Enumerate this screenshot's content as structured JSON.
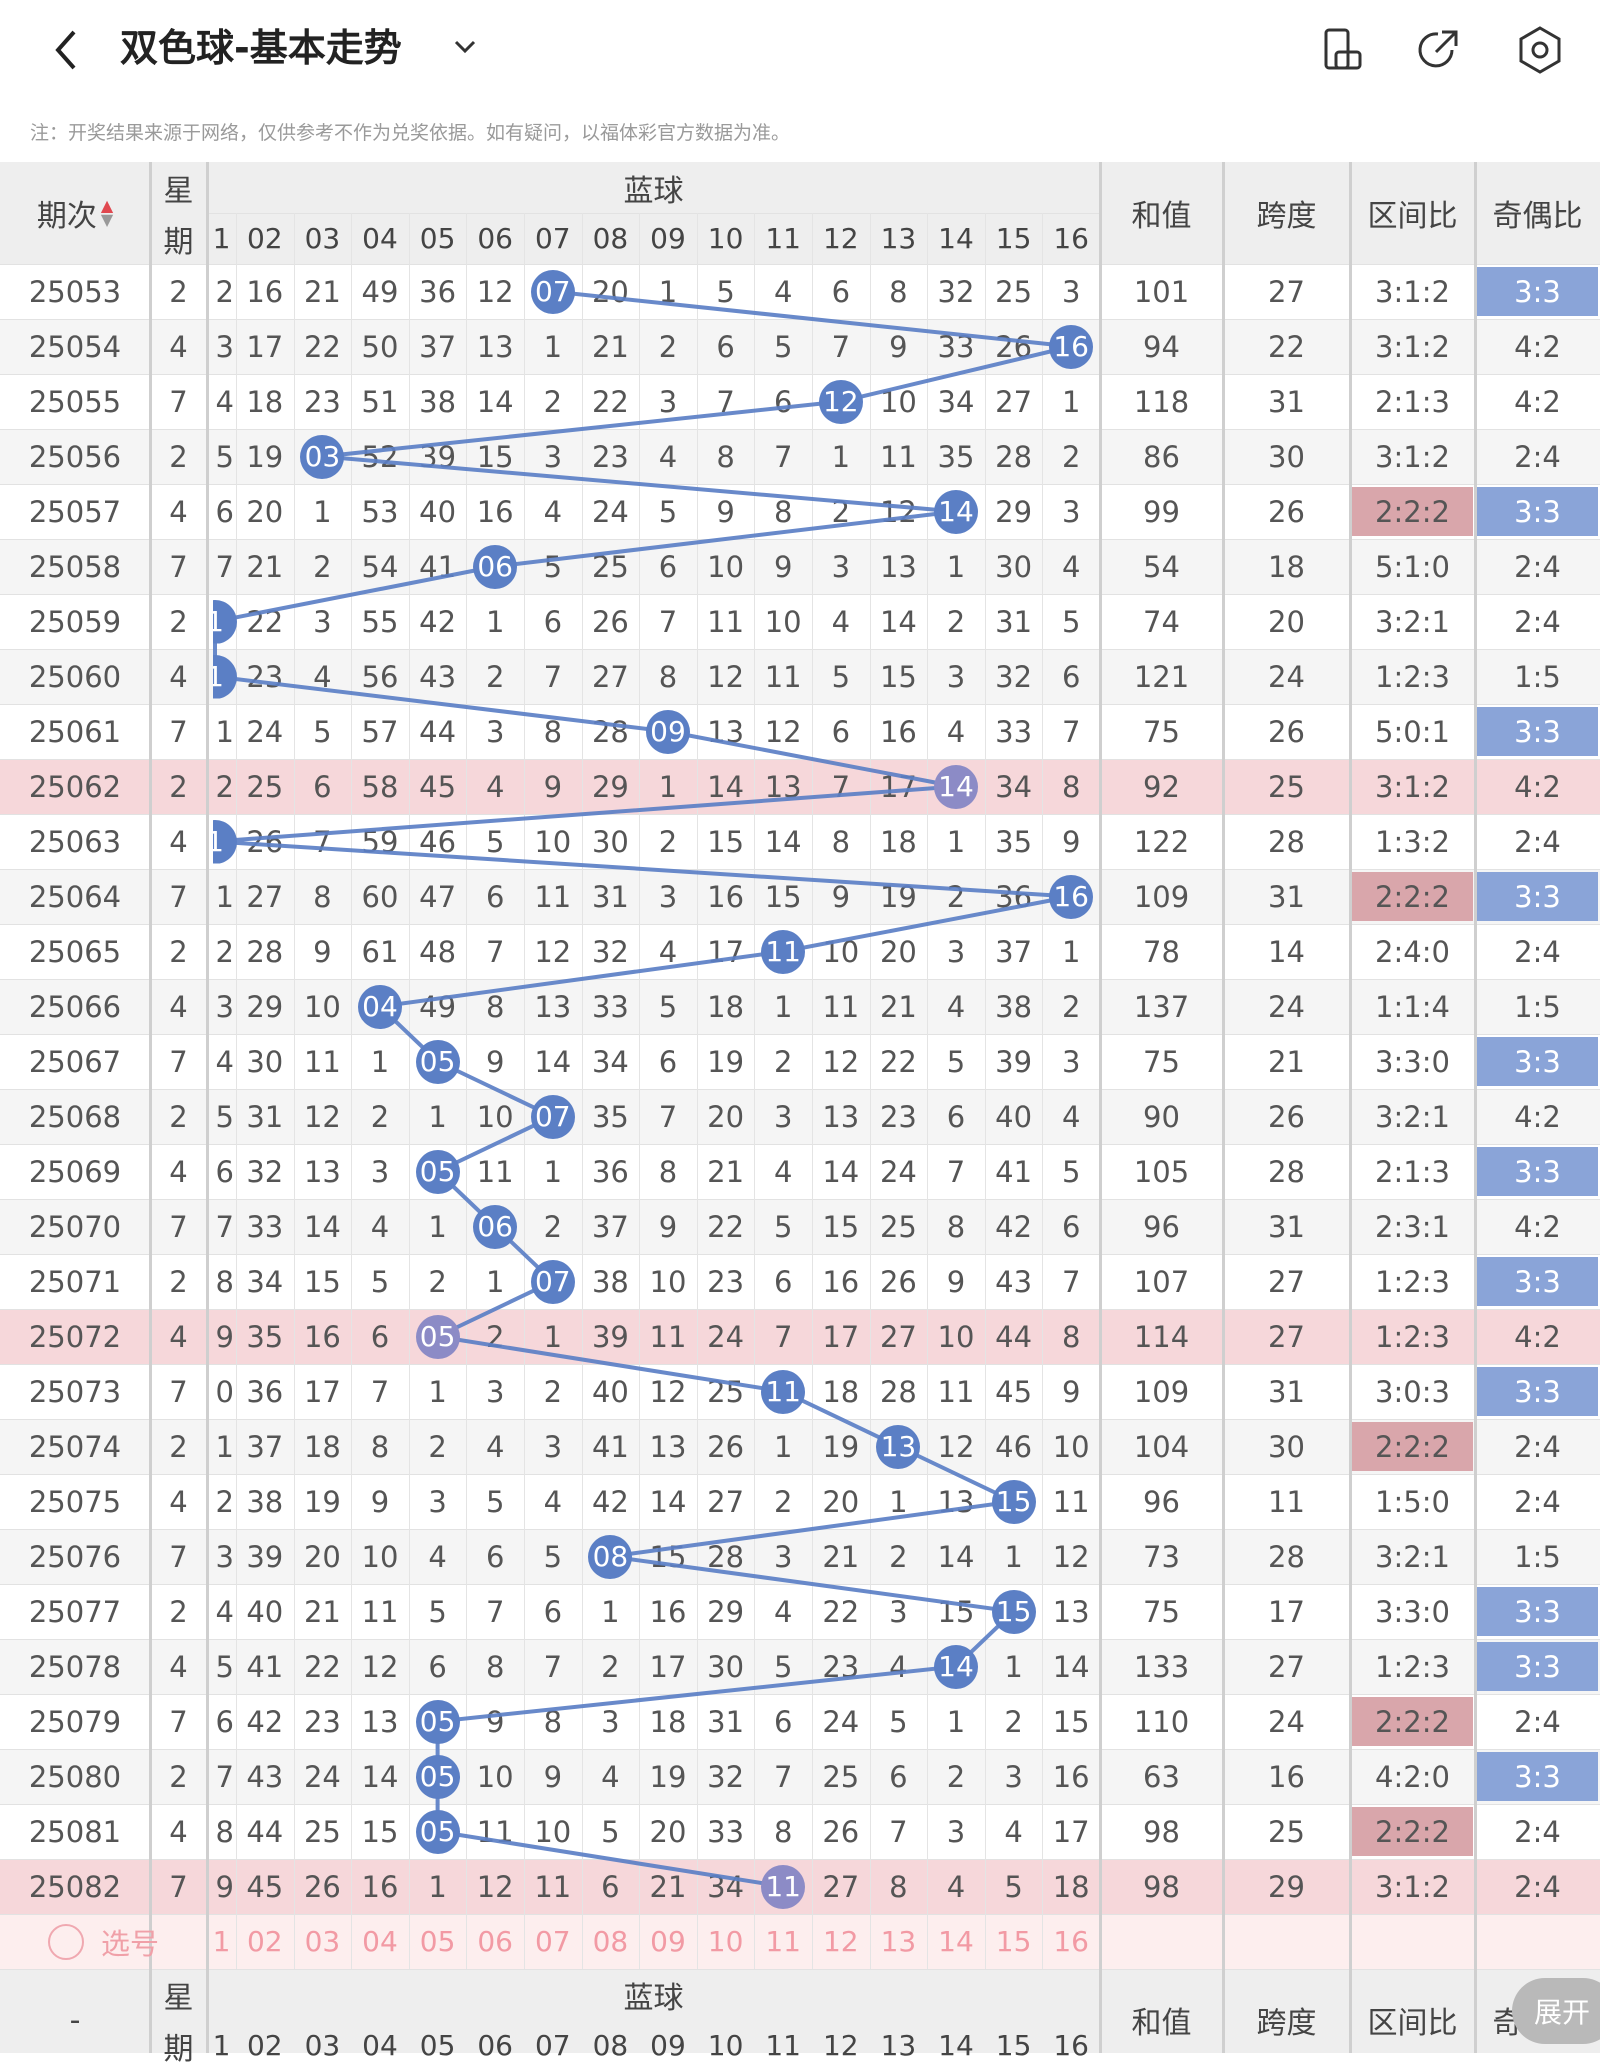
{
  "header": {
    "title": "双色球-基本走势",
    "icons": [
      "back-arrow-icon",
      "dropdown-chevron-icon",
      "screen-rotate-icon",
      "share-icon",
      "settings-icon"
    ]
  },
  "notice": "注：开奖结果来源于网络，仅供参考不作为兑奖依据。如有疑问，以福体彩官方数据为准。",
  "table": {
    "col_period": "期次",
    "col_week": [
      "星",
      "期"
    ],
    "col_blue": "蓝球",
    "col_sum": "和值",
    "col_span": "跨度",
    "col_zone": "区间比",
    "col_parity": "奇偶比",
    "blue_numbers": [
      "1",
      "02",
      "03",
      "04",
      "05",
      "06",
      "07",
      "08",
      "09",
      "10",
      "11",
      "12",
      "13",
      "14",
      "15",
      "16"
    ],
    "first_col_partial": [
      "2",
      "3",
      "4",
      "5",
      "6",
      "7",
      "1",
      "1",
      "1",
      "2",
      "1",
      "1",
      "2",
      "3",
      "4",
      "5",
      "6",
      "7",
      "8",
      "9",
      "0",
      "1",
      "2",
      "3",
      "4",
      "5",
      "6",
      "7",
      "8",
      "9"
    ],
    "rows": [
      {
        "period": "25053",
        "week": "2",
        "blue": 7,
        "cells": [
          "16",
          "21",
          "49",
          "36",
          "12",
          "",
          "20",
          "1",
          "5",
          "4",
          "6",
          "8",
          "32",
          "25",
          "3"
        ],
        "sum": "101",
        "span": "27",
        "zone": "3:1:2",
        "parity": "3:3"
      },
      {
        "period": "25054",
        "week": "4",
        "blue": 16,
        "cells": [
          "17",
          "22",
          "50",
          "37",
          "13",
          "1",
          "21",
          "2",
          "6",
          "5",
          "7",
          "9",
          "33",
          "26",
          ""
        ],
        "sum": "94",
        "span": "22",
        "zone": "3:1:2",
        "parity": "4:2"
      },
      {
        "period": "25055",
        "week": "7",
        "blue": 12,
        "cells": [
          "18",
          "23",
          "51",
          "38",
          "14",
          "2",
          "22",
          "3",
          "7",
          "6",
          "",
          "10",
          "34",
          "27",
          "1"
        ],
        "sum": "118",
        "span": "31",
        "zone": "2:1:3",
        "parity": "4:2"
      },
      {
        "period": "25056",
        "week": "2",
        "blue": 3,
        "cells": [
          "19",
          "",
          "52",
          "39",
          "15",
          "3",
          "23",
          "4",
          "8",
          "7",
          "1",
          "11",
          "35",
          "28",
          "2"
        ],
        "sum": "86",
        "span": "30",
        "zone": "3:1:2",
        "parity": "2:4"
      },
      {
        "period": "25057",
        "week": "4",
        "blue": 14,
        "cells": [
          "20",
          "1",
          "53",
          "40",
          "16",
          "4",
          "24",
          "5",
          "9",
          "8",
          "2",
          "12",
          "",
          "29",
          "3"
        ],
        "sum": "99",
        "span": "26",
        "zone": "2:2:2",
        "parity": "3:3"
      },
      {
        "period": "25058",
        "week": "7",
        "blue": 6,
        "cells": [
          "21",
          "2",
          "54",
          "41",
          "",
          "5",
          "25",
          "6",
          "10",
          "9",
          "3",
          "13",
          "1",
          "30",
          "4"
        ],
        "sum": "54",
        "span": "18",
        "zone": "5:1:0",
        "parity": "2:4"
      },
      {
        "period": "25059",
        "week": "2",
        "blue": 1,
        "cells": [
          "22",
          "3",
          "55",
          "42",
          "1",
          "6",
          "26",
          "7",
          "11",
          "10",
          "4",
          "14",
          "2",
          "31",
          "5"
        ],
        "sum": "74",
        "span": "20",
        "zone": "3:2:1",
        "parity": "2:4"
      },
      {
        "period": "25060",
        "week": "4",
        "blue": 1,
        "cells": [
          "23",
          "4",
          "56",
          "43",
          "2",
          "7",
          "27",
          "8",
          "12",
          "11",
          "5",
          "15",
          "3",
          "32",
          "6"
        ],
        "sum": "121",
        "span": "24",
        "zone": "1:2:3",
        "parity": "1:5"
      },
      {
        "period": "25061",
        "week": "7",
        "blue": 9,
        "cells": [
          "24",
          "5",
          "57",
          "44",
          "3",
          "8",
          "28",
          "",
          "13",
          "12",
          "6",
          "16",
          "4",
          "33",
          "7"
        ],
        "sum": "75",
        "span": "26",
        "zone": "5:0:1",
        "parity": "3:3"
      },
      {
        "period": "25062",
        "week": "2",
        "blue": 14,
        "cells": [
          "25",
          "6",
          "58",
          "45",
          "4",
          "9",
          "29",
          "1",
          "14",
          "13",
          "7",
          "17",
          "",
          "34",
          "8"
        ],
        "sum": "92",
        "span": "25",
        "zone": "3:1:2",
        "parity": "4:2"
      },
      {
        "period": "25063",
        "week": "4",
        "blue": 1,
        "cells": [
          "26",
          "7",
          "59",
          "46",
          "5",
          "10",
          "30",
          "2",
          "15",
          "14",
          "8",
          "18",
          "1",
          "35",
          "9"
        ],
        "sum": "122",
        "span": "28",
        "zone": "1:3:2",
        "parity": "2:4"
      },
      {
        "period": "25064",
        "week": "7",
        "blue": 16,
        "cells": [
          "27",
          "8",
          "60",
          "47",
          "6",
          "11",
          "31",
          "3",
          "16",
          "15",
          "9",
          "19",
          "2",
          "36",
          ""
        ],
        "sum": "109",
        "span": "31",
        "zone": "2:2:2",
        "parity": "3:3"
      },
      {
        "period": "25065",
        "week": "2",
        "blue": 11,
        "cells": [
          "28",
          "9",
          "61",
          "48",
          "7",
          "12",
          "32",
          "4",
          "17",
          "",
          "10",
          "20",
          "3",
          "37",
          "1"
        ],
        "sum": "78",
        "span": "14",
        "zone": "2:4:0",
        "parity": "2:4"
      },
      {
        "period": "25066",
        "week": "4",
        "blue": 4,
        "cells": [
          "29",
          "10",
          "",
          "49",
          "8",
          "13",
          "33",
          "5",
          "18",
          "1",
          "11",
          "21",
          "4",
          "38",
          "2"
        ],
        "sum": "137",
        "span": "24",
        "zone": "1:1:4",
        "parity": "1:5"
      },
      {
        "period": "25067",
        "week": "7",
        "blue": 5,
        "cells": [
          "30",
          "11",
          "1",
          "",
          "9",
          "14",
          "34",
          "6",
          "19",
          "2",
          "12",
          "22",
          "5",
          "39",
          "3"
        ],
        "sum": "75",
        "span": "21",
        "zone": "3:3:0",
        "parity": "3:3"
      },
      {
        "period": "25068",
        "week": "2",
        "blue": 7,
        "cells": [
          "31",
          "12",
          "2",
          "1",
          "10",
          "",
          "35",
          "7",
          "20",
          "3",
          "13",
          "23",
          "6",
          "40",
          "4"
        ],
        "sum": "90",
        "span": "26",
        "zone": "3:2:1",
        "parity": "4:2"
      },
      {
        "period": "25069",
        "week": "4",
        "blue": 5,
        "cells": [
          "32",
          "13",
          "3",
          "",
          "11",
          "1",
          "36",
          "8",
          "21",
          "4",
          "14",
          "24",
          "7",
          "41",
          "5"
        ],
        "sum": "105",
        "span": "28",
        "zone": "2:1:3",
        "parity": "3:3"
      },
      {
        "period": "25070",
        "week": "7",
        "blue": 6,
        "cells": [
          "33",
          "14",
          "4",
          "1",
          "",
          "2",
          "37",
          "9",
          "22",
          "5",
          "15",
          "25",
          "8",
          "42",
          "6"
        ],
        "sum": "96",
        "span": "31",
        "zone": "2:3:1",
        "parity": "4:2"
      },
      {
        "period": "25071",
        "week": "2",
        "blue": 7,
        "cells": [
          "34",
          "15",
          "5",
          "2",
          "1",
          "",
          "38",
          "10",
          "23",
          "6",
          "16",
          "26",
          "9",
          "43",
          "7"
        ],
        "sum": "107",
        "span": "27",
        "zone": "1:2:3",
        "parity": "3:3"
      },
      {
        "period": "25072",
        "week": "4",
        "blue": 5,
        "cells": [
          "35",
          "16",
          "6",
          "",
          "2",
          "1",
          "39",
          "11",
          "24",
          "7",
          "17",
          "27",
          "10",
          "44",
          "8"
        ],
        "sum": "114",
        "span": "27",
        "zone": "1:2:3",
        "parity": "4:2"
      },
      {
        "period": "25073",
        "week": "7",
        "blue": 11,
        "cells": [
          "36",
          "17",
          "7",
          "1",
          "3",
          "2",
          "40",
          "12",
          "25",
          "",
          "18",
          "28",
          "11",
          "45",
          "9"
        ],
        "sum": "109",
        "span": "31",
        "zone": "3:0:3",
        "parity": "3:3"
      },
      {
        "period": "25074",
        "week": "2",
        "blue": 13,
        "cells": [
          "37",
          "18",
          "8",
          "2",
          "4",
          "3",
          "41",
          "13",
          "26",
          "1",
          "19",
          "",
          "12",
          "46",
          "10"
        ],
        "sum": "104",
        "span": "30",
        "zone": "2:2:2",
        "parity": "2:4"
      },
      {
        "period": "25075",
        "week": "4",
        "blue": 15,
        "cells": [
          "38",
          "19",
          "9",
          "3",
          "5",
          "4",
          "42",
          "14",
          "27",
          "2",
          "20",
          "1",
          "13",
          "",
          "11"
        ],
        "sum": "96",
        "span": "11",
        "zone": "1:5:0",
        "parity": "2:4"
      },
      {
        "period": "25076",
        "week": "7",
        "blue": 8,
        "cells": [
          "39",
          "20",
          "10",
          "4",
          "6",
          "5",
          "",
          "15",
          "28",
          "3",
          "21",
          "2",
          "14",
          "1",
          "12"
        ],
        "sum": "73",
        "span": "28",
        "zone": "3:2:1",
        "parity": "1:5"
      },
      {
        "period": "25077",
        "week": "2",
        "blue": 15,
        "cells": [
          "40",
          "21",
          "11",
          "5",
          "7",
          "6",
          "1",
          "16",
          "29",
          "4",
          "22",
          "3",
          "15",
          "",
          "13"
        ],
        "sum": "75",
        "span": "17",
        "zone": "3:3:0",
        "parity": "3:3"
      },
      {
        "period": "25078",
        "week": "4",
        "blue": 14,
        "cells": [
          "41",
          "22",
          "12",
          "6",
          "8",
          "7",
          "2",
          "17",
          "30",
          "5",
          "23",
          "4",
          "",
          "1",
          "14"
        ],
        "sum": "133",
        "span": "27",
        "zone": "1:2:3",
        "parity": "3:3"
      },
      {
        "period": "25079",
        "week": "7",
        "blue": 5,
        "cells": [
          "42",
          "23",
          "13",
          "",
          "9",
          "8",
          "3",
          "18",
          "31",
          "6",
          "24",
          "5",
          "1",
          "2",
          "15"
        ],
        "sum": "110",
        "span": "24",
        "zone": "2:2:2",
        "parity": "2:4"
      },
      {
        "period": "25080",
        "week": "2",
        "blue": 5,
        "cells": [
          "43",
          "24",
          "14",
          "",
          "10",
          "9",
          "4",
          "19",
          "32",
          "7",
          "25",
          "6",
          "2",
          "3",
          "16"
        ],
        "sum": "63",
        "span": "16",
        "zone": "4:2:0",
        "parity": "3:3"
      },
      {
        "period": "25081",
        "week": "4",
        "blue": 5,
        "cells": [
          "44",
          "25",
          "15",
          "",
          "11",
          "10",
          "5",
          "20",
          "33",
          "8",
          "26",
          "7",
          "3",
          "4",
          "17"
        ],
        "sum": "98",
        "span": "25",
        "zone": "2:2:2",
        "parity": "2:4"
      },
      {
        "period": "25082",
        "week": "7",
        "blue": 11,
        "cells": [
          "45",
          "26",
          "16",
          "1",
          "12",
          "11",
          "6",
          "21",
          "34",
          "",
          "27",
          "8",
          "4",
          "5",
          "18"
        ],
        "sum": "98",
        "span": "29",
        "zone": "3:1:2",
        "parity": "2:4"
      }
    ],
    "highlight_rows": [
      "25062",
      "25072",
      "25082"
    ],
    "select_label": "选号",
    "footer_dash": "-"
  },
  "expand_label": "展开",
  "colors": {
    "ball_blue": "#5b7fc5",
    "ball_dim": "#8c8bc6",
    "line_blue": "#5b7fc5",
    "parity_highlight": "#8aa4d8",
    "zone_highlight": "#d9a6ab",
    "row_highlight": "#f6d7da",
    "header_bg": "#eeeeee",
    "stripe": "#f5f5f5"
  }
}
